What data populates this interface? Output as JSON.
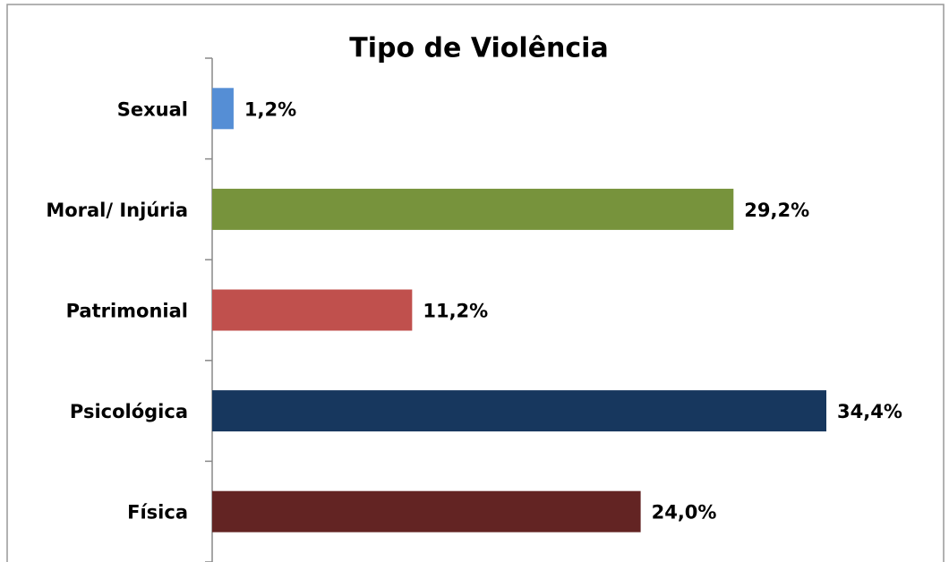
{
  "chart_data": {
    "type": "bar",
    "orientation": "horizontal",
    "title": "Tipo de Violência",
    "categories": [
      "Sexual",
      "Moral/ Injúria",
      "Patrimonial",
      "Psicológica",
      "Física"
    ],
    "values": [
      1.2,
      29.2,
      11.2,
      34.4,
      24.0
    ],
    "value_labels": [
      "1,2%",
      "29,2%",
      "11,2%",
      "34,4%",
      "24,0%"
    ],
    "colors": [
      "#558ed5",
      "#77933c",
      "#c0504d",
      "#17375e",
      "#632423"
    ]
  }
}
